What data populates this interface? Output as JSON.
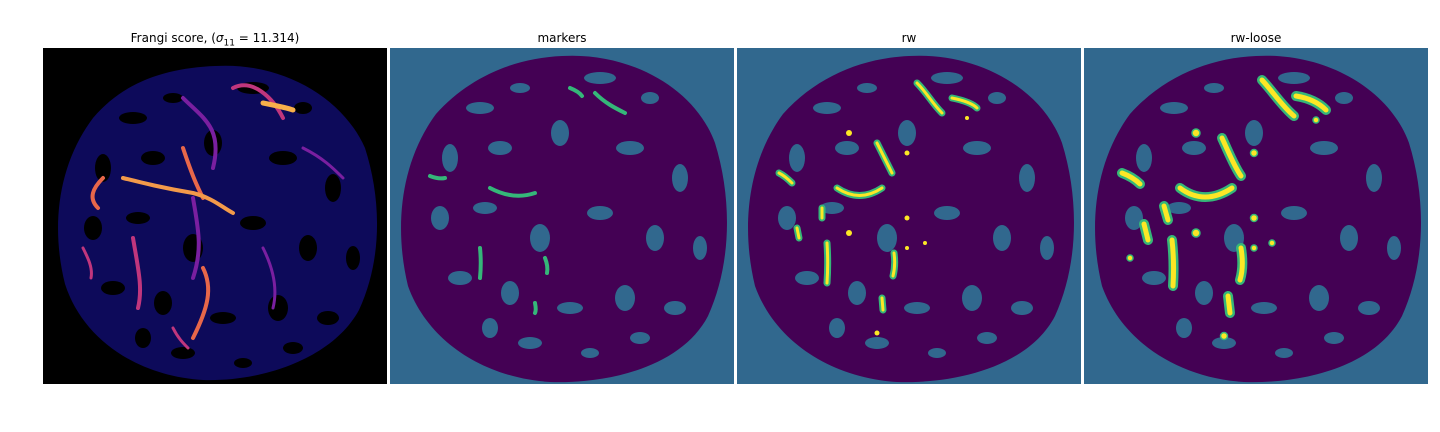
{
  "figure": {
    "panels": [
      {
        "id": "frangi",
        "title_pre": "Frangi score, (",
        "title_var": "σ",
        "title_sub": "11",
        "title_post": " = 11.314)",
        "colormap": "inferno"
      },
      {
        "id": "markers",
        "title": "markers",
        "colormap": "viridis"
      },
      {
        "id": "rw",
        "title": "rw",
        "colormap": "viridis"
      },
      {
        "id": "rw-loose",
        "title": "rw-loose",
        "colormap": "viridis"
      }
    ],
    "colors": {
      "inferno_bg": "#000000",
      "inferno_tissue": "#0d0a5a",
      "inferno_mid": "#7a1fa0",
      "inferno_high": "#f8b04a",
      "viridis_bg": "#31688e",
      "viridis_tissue": "#440154",
      "viridis_marker": "#35b779",
      "viridis_high": "#fde725"
    }
  }
}
